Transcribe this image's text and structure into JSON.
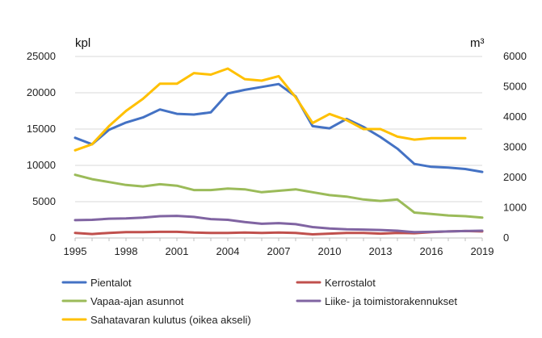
{
  "chart_data": {
    "type": "line",
    "title": "",
    "ylabel_left": "kpl",
    "ylabel_right": "m³",
    "x": [
      1995,
      1996,
      1997,
      1998,
      1999,
      2000,
      2001,
      2002,
      2003,
      2004,
      2005,
      2006,
      2007,
      2008,
      2009,
      2010,
      2011,
      2012,
      2013,
      2014,
      2015,
      2016,
      2017,
      2018,
      2019
    ],
    "x_ticks": [
      "1995",
      "1998",
      "2001",
      "2004",
      "2007",
      "2010",
      "2013",
      "2016",
      "2019"
    ],
    "y_left_ticks": [
      "0",
      "5000",
      "10000",
      "15000",
      "20000",
      "25000"
    ],
    "y_right_ticks": [
      "0",
      "1000",
      "2000",
      "3000",
      "4000",
      "5000",
      "6000"
    ],
    "ylim_left": [
      0,
      25000
    ],
    "ylim_right": [
      0,
      6000
    ],
    "grid": true,
    "legend_position": "bottom",
    "series": [
      {
        "name": "Pientalot",
        "axis": "left",
        "color": "#4472C4",
        "values": [
          13800,
          12900,
          14900,
          15900,
          16600,
          17700,
          17100,
          17000,
          17300,
          19900,
          20400,
          20800,
          21200,
          19500,
          15400,
          15100,
          16400,
          15300,
          13900,
          12300,
          10200,
          9800,
          9700,
          9500,
          9100
        ]
      },
      {
        "name": "Kerrostalot",
        "axis": "left",
        "color": "#C0504D",
        "values": [
          700,
          550,
          700,
          800,
          800,
          850,
          850,
          750,
          700,
          700,
          750,
          700,
          750,
          700,
          500,
          600,
          700,
          700,
          600,
          700,
          650,
          800,
          900,
          950,
          900
        ]
      },
      {
        "name": "Vapaa-ajan asunnot",
        "axis": "left",
        "color": "#9BBB59",
        "values": [
          8700,
          8100,
          7700,
          7300,
          7100,
          7400,
          7200,
          6600,
          6600,
          6800,
          6700,
          6300,
          6500,
          6700,
          6300,
          5900,
          5700,
          5300,
          5100,
          5300,
          3500,
          3300,
          3100,
          3000,
          2800
        ]
      },
      {
        "name": "Liike- ja toimistorakennukset",
        "axis": "left",
        "color": "#8064A2",
        "values": [
          2450,
          2500,
          2650,
          2700,
          2800,
          3000,
          3050,
          2900,
          2600,
          2500,
          2200,
          1950,
          2050,
          1900,
          1500,
          1300,
          1200,
          1150,
          1100,
          1000,
          800,
          850,
          900,
          950,
          1000
        ]
      },
      {
        "name": "Sahatavaran kulutus (oikea akseli)",
        "axis": "right",
        "color": "#FFC000",
        "values": [
          2900,
          3100,
          3700,
          4200,
          4600,
          5100,
          5100,
          5450,
          5400,
          5600,
          5250,
          5200,
          5350,
          4650,
          3800,
          4100,
          3900,
          3600,
          3600,
          3350,
          3250,
          3300,
          3300,
          3300,
          null
        ]
      }
    ]
  }
}
